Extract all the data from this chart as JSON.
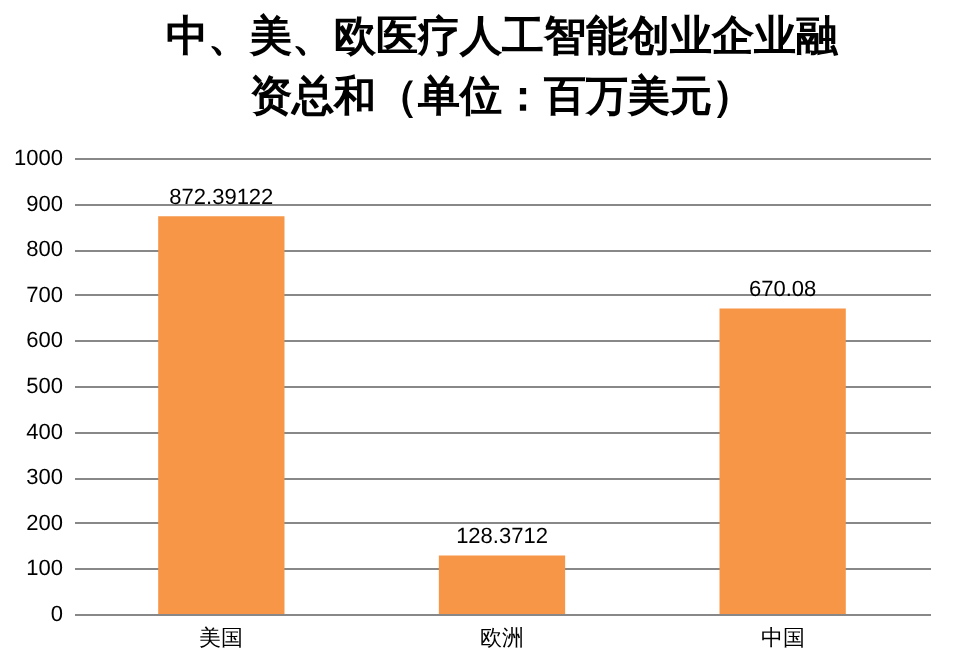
{
  "chart_data": {
    "type": "bar",
    "title": "中、美、欧医疗人工智能创业企业融资总和（单位：百万美元）",
    "categories": [
      "美国",
      "欧洲",
      "中国"
    ],
    "values": [
      872.39122,
      128.3712,
      670.08
    ],
    "color": "#f79646",
    "ylim": [
      0,
      1000
    ],
    "yticks": [
      0,
      100,
      200,
      300,
      400,
      500,
      600,
      700,
      800,
      900,
      1000
    ],
    "grid": "y",
    "data_labels": true
  }
}
